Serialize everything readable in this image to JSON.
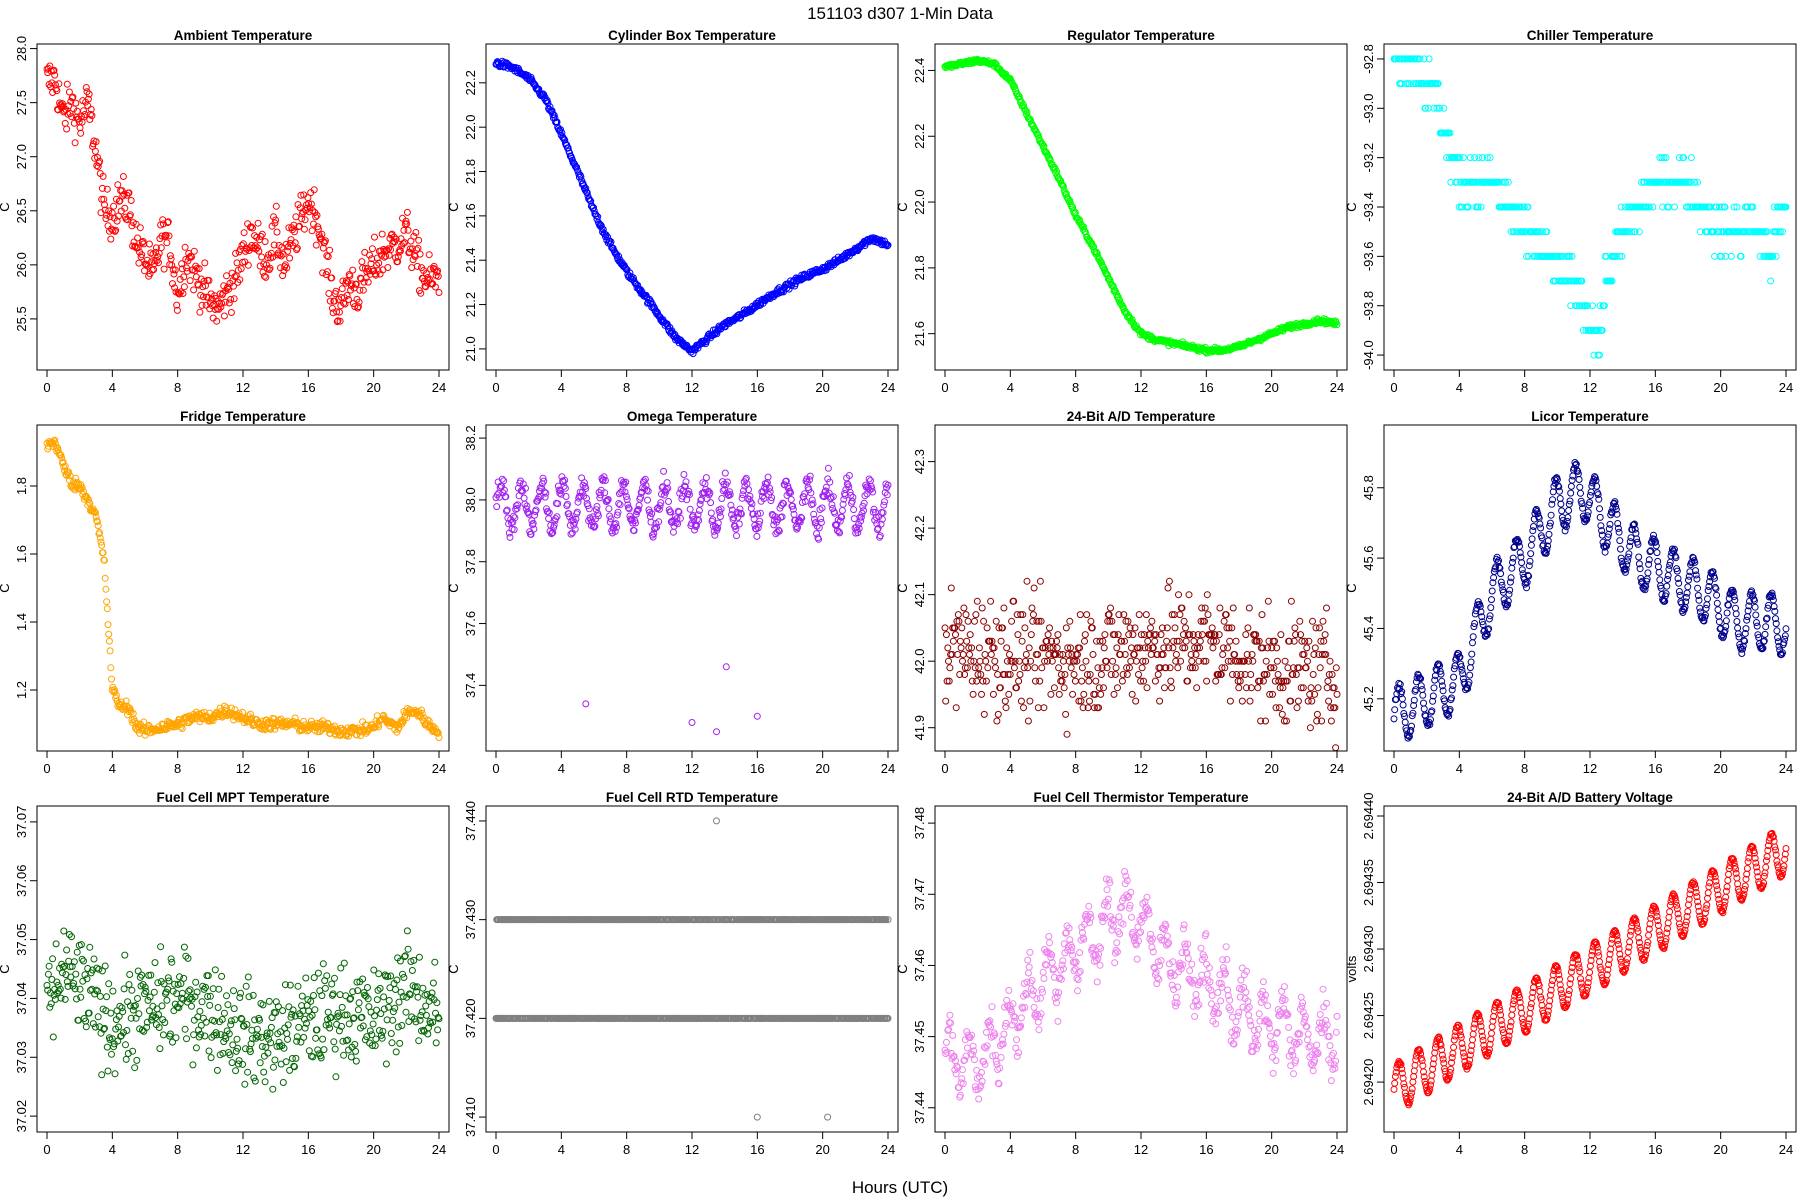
{
  "figure": {
    "title": "151103   d307   1-Min Data",
    "xlabel": "Hours (UTC)"
  },
  "chart_data": [
    {
      "type": "scatter",
      "title": "Ambient Temperature",
      "ylabel": "C",
      "color": "#ff0000",
      "xlim": [
        0,
        24
      ],
      "ylim": [
        25.12,
        27.95
      ],
      "xticks": [
        0,
        4,
        8,
        12,
        16,
        20,
        24
      ],
      "yticks": [
        25.5,
        26.0,
        26.5,
        27.0,
        27.5,
        28.0
      ],
      "ytick_labels": [
        "25.5",
        "26.0",
        "26.5",
        "27.0",
        "27.5",
        "28.0"
      ],
      "x": [
        0,
        0.5,
        1,
        1.5,
        2,
        2.5,
        3,
        3.5,
        4,
        4.5,
        5,
        5.5,
        6,
        6.5,
        7,
        7.5,
        8,
        8.5,
        9,
        9.5,
        10,
        10.5,
        11,
        11.5,
        12,
        12.5,
        13,
        13.5,
        14,
        14.5,
        15,
        15.5,
        16,
        16.5,
        17,
        17.5,
        18,
        18.5,
        19,
        19.5,
        20,
        20.5,
        21,
        21.5,
        22,
        22.5,
        23,
        23.5,
        24
      ],
      "y": [
        27.7,
        27.72,
        27.35,
        27.5,
        27.3,
        27.5,
        27.05,
        26.5,
        26.45,
        26.6,
        26.55,
        26.2,
        26.05,
        25.9,
        26.25,
        26.2,
        25.7,
        26.1,
        25.95,
        25.8,
        25.65,
        25.6,
        25.75,
        25.85,
        26.1,
        26.3,
        26.15,
        26.05,
        26.3,
        26.0,
        26.2,
        26.4,
        26.6,
        26.45,
        26.1,
        25.7,
        25.6,
        25.85,
        25.75,
        25.9,
        26.0,
        26.1,
        26.15,
        26.2,
        26.3,
        26.1,
        25.9,
        25.85,
        25.9
      ],
      "noise": 0.18
    },
    {
      "type": "scatter",
      "title": "Cylinder Box Temperature",
      "ylabel": "C",
      "color": "#0000ff",
      "xlim": [
        0,
        24
      ],
      "ylim": [
        20.95,
        22.33
      ],
      "xticks": [
        0,
        4,
        8,
        12,
        16,
        20,
        24
      ],
      "yticks": [
        21.0,
        21.2,
        21.4,
        21.6,
        21.8,
        22.0,
        22.2
      ],
      "ytick_labels": [
        "21.0",
        "21.2",
        "21.4",
        "21.6",
        "21.8",
        "22.0",
        "22.2"
      ],
      "x": [
        0,
        1,
        2,
        3,
        4,
        5,
        6,
        7,
        8,
        9,
        10,
        11,
        12,
        13,
        14,
        15,
        16,
        17,
        18,
        19,
        20,
        21,
        22,
        23,
        24
      ],
      "y": [
        22.29,
        22.27,
        22.22,
        22.13,
        21.97,
        21.8,
        21.62,
        21.47,
        21.35,
        21.25,
        21.15,
        21.05,
        20.99,
        21.05,
        21.11,
        21.15,
        21.2,
        21.25,
        21.29,
        21.33,
        21.36,
        21.4,
        21.45,
        21.5,
        21.47
      ],
      "noise": 0.012
    },
    {
      "type": "scatter",
      "title": "Regulator Temperature",
      "ylabel": "C",
      "color": "#00ff00",
      "xlim": [
        0,
        24
      ],
      "ylim": [
        21.52,
        22.45
      ],
      "xticks": [
        0,
        4,
        8,
        12,
        16,
        20,
        24
      ],
      "yticks": [
        21.6,
        21.8,
        22.0,
        22.2,
        22.4
      ],
      "ytick_labels": [
        "21.6",
        "21.8",
        "22.0",
        "22.2",
        "22.4"
      ],
      "x": [
        0,
        1,
        2,
        3,
        4,
        5,
        6,
        7,
        8,
        9,
        10,
        11,
        12,
        13,
        14,
        15,
        16,
        17,
        18,
        19,
        20,
        21,
        22,
        23,
        24
      ],
      "y": [
        22.41,
        22.42,
        22.43,
        22.42,
        22.37,
        22.27,
        22.17,
        22.07,
        21.96,
        21.87,
        21.77,
        21.67,
        21.6,
        21.58,
        21.57,
        21.56,
        21.55,
        21.55,
        21.56,
        21.58,
        21.6,
        21.62,
        21.63,
        21.64,
        21.63
      ],
      "noise": 0.006
    },
    {
      "type": "scatter",
      "title": "Chiller Temperature",
      "ylabel": "C",
      "color": "#00ffff",
      "xlim": [
        0,
        24
      ],
      "ylim": [
        -94.02,
        -92.78
      ],
      "xticks": [
        0,
        4,
        8,
        12,
        16,
        20,
        24
      ],
      "yticks": [
        -94.0,
        -93.8,
        -93.6,
        -93.4,
        -93.2,
        -93.0,
        -92.8
      ],
      "ytick_labels": [
        "-94.0",
        "-93.8",
        "-93.6",
        "-93.4",
        "-93.2",
        "-93.0",
        "-92.8"
      ],
      "x": [
        0,
        1,
        2,
        2.5,
        3,
        3.5,
        4,
        5,
        6,
        7,
        8,
        9,
        10,
        11,
        12,
        12.5,
        13,
        14,
        15,
        16,
        17,
        18,
        19,
        20,
        21,
        22,
        23,
        24
      ],
      "y": [
        -92.8,
        -92.8,
        -92.9,
        -92.95,
        -93.05,
        -93.2,
        -93.3,
        -93.3,
        -93.3,
        -93.4,
        -93.5,
        -93.55,
        -93.65,
        -93.7,
        -93.85,
        -93.95,
        -93.7,
        -93.5,
        -93.4,
        -93.3,
        -93.3,
        -93.3,
        -93.4,
        -93.5,
        -93.5,
        -93.45,
        -93.6,
        -93.4
      ],
      "noise": 0.08,
      "step": 0.1
    },
    {
      "type": "scatter",
      "title": "Fridge Temperature",
      "ylabel": "C",
      "color": "#ffa500",
      "xlim": [
        0,
        24
      ],
      "ylim": [
        1.05,
        1.95
      ],
      "xticks": [
        0,
        4,
        8,
        12,
        16,
        20,
        24
      ],
      "yticks": [
        1.2,
        1.4,
        1.6,
        1.8
      ],
      "ytick_labels": [
        "1.2",
        "1.4",
        "1.6",
        "1.8"
      ],
      "x": [
        0,
        0.5,
        1,
        1.5,
        2,
        2.5,
        3,
        3.5,
        4,
        4.5,
        5,
        5.5,
        6,
        7,
        8,
        9,
        10,
        11,
        12,
        13,
        14,
        15,
        16,
        17,
        18,
        19,
        20,
        20.5,
        21,
        21.5,
        22,
        22.5,
        23,
        23.5,
        24
      ],
      "y": [
        1.92,
        1.93,
        1.86,
        1.81,
        1.8,
        1.76,
        1.71,
        1.58,
        1.2,
        1.15,
        1.15,
        1.09,
        1.08,
        1.09,
        1.1,
        1.12,
        1.12,
        1.14,
        1.12,
        1.1,
        1.1,
        1.1,
        1.09,
        1.09,
        1.08,
        1.08,
        1.09,
        1.12,
        1.1,
        1.09,
        1.13,
        1.14,
        1.12,
        1.09,
        1.08
      ],
      "noise": 0.015
    },
    {
      "type": "scatter",
      "title": "Omega Temperature",
      "ylabel": "C",
      "color": "#a020f0",
      "xlim": [
        0,
        24
      ],
      "ylim": [
        37.22,
        38.21
      ],
      "xticks": [
        0,
        4,
        8,
        12,
        16,
        20,
        24
      ],
      "yticks": [
        37.4,
        37.6,
        37.8,
        38.0,
        38.2
      ],
      "ytick_labels": [
        "37.4",
        "37.6",
        "37.8",
        "38.0",
        "38.2"
      ],
      "x": [
        0,
        24
      ],
      "y": [
        37.98,
        37.98
      ],
      "wave_amp": 0.07,
      "wave_period": 1.25,
      "noise": 0.03,
      "outliers_x": [
        5.5,
        12,
        13.5,
        14.1,
        16
      ],
      "outliers_y": [
        37.34,
        37.28,
        37.25,
        37.46,
        37.3
      ]
    },
    {
      "type": "scatter",
      "title": "24-Bit A/D Temperature",
      "ylabel": "C",
      "color": "#8b0000",
      "xlim": [
        0,
        24
      ],
      "ylim": [
        41.88,
        42.34
      ],
      "xticks": [
        0,
        4,
        8,
        12,
        16,
        20,
        24
      ],
      "yticks": [
        41.9,
        42.0,
        42.1,
        42.2,
        42.3
      ],
      "ytick_labels": [
        "41.9",
        "42.0",
        "42.1",
        "42.2",
        "42.3"
      ],
      "x": [
        0,
        4,
        8,
        12,
        16,
        20,
        24
      ],
      "y": [
        42.02,
        42.01,
        42.0,
        42.02,
        42.03,
        41.99,
        41.98
      ],
      "noise": 0.07,
      "step": 0.01
    },
    {
      "type": "scatter",
      "title": "Licor Temperature",
      "ylabel": "C",
      "color": "#00008b",
      "xlim": [
        0,
        24
      ],
      "ylim": [
        45.08,
        45.95
      ],
      "xticks": [
        0,
        4,
        8,
        12,
        16,
        20,
        24
      ],
      "yticks": [
        45.2,
        45.4,
        45.6,
        45.8
      ],
      "ytick_labels": [
        "45.2",
        "45.4",
        "45.6",
        "45.8"
      ],
      "x": [
        0,
        2,
        4,
        6,
        8,
        10,
        11.5,
        13,
        15,
        17,
        19,
        21,
        23,
        24
      ],
      "y": [
        45.15,
        45.2,
        45.25,
        45.5,
        45.6,
        45.75,
        45.8,
        45.7,
        45.6,
        45.55,
        45.5,
        45.42,
        45.42,
        45.4
      ],
      "wave_amp": 0.08,
      "wave_period": 1.2,
      "noise": 0.008
    },
    {
      "type": "scatter",
      "title": "Fuel Cell MPT Temperature",
      "ylabel": "C",
      "color": "#006400",
      "xlim": [
        0,
        24
      ],
      "ylim": [
        37.019,
        37.071
      ],
      "xticks": [
        0,
        4,
        8,
        12,
        16,
        20,
        24
      ],
      "yticks": [
        37.02,
        37.03,
        37.04,
        37.05,
        37.06,
        37.07
      ],
      "ytick_labels": [
        "37.02",
        "37.03",
        "37.04",
        "37.05",
        "37.06",
        "37.07"
      ],
      "x": [
        0,
        1,
        2,
        4,
        6,
        8,
        10,
        12,
        14,
        16,
        18,
        20,
        22,
        24
      ],
      "y": [
        37.038,
        37.045,
        37.042,
        37.036,
        37.038,
        37.04,
        37.038,
        37.034,
        37.033,
        37.036,
        37.038,
        37.036,
        37.042,
        37.037
      ],
      "noise": 0.007
    },
    {
      "type": "scatter",
      "title": "Fuel Cell RTD Temperature",
      "ylabel": "C",
      "color": "#808080",
      "xlim": [
        0,
        24
      ],
      "ylim": [
        37.4095,
        37.4405
      ],
      "xticks": [
        0,
        4,
        8,
        12,
        16,
        20,
        24
      ],
      "yticks": [
        37.41,
        37.42,
        37.43,
        37.44
      ],
      "ytick_labels": [
        "37.410",
        "37.420",
        "37.430",
        "37.440"
      ],
      "levels": [
        37.42,
        37.43
      ],
      "outliers_x": [
        13.5,
        16,
        20.3
      ],
      "outliers_y": [
        37.44,
        37.41,
        37.41
      ]
    },
    {
      "type": "scatter",
      "title": "Fuel Cell Thermistor Temperature",
      "ylabel": "C",
      "color": "#ee82ee",
      "xlim": [
        0,
        24
      ],
      "ylim": [
        37.438,
        37.481
      ],
      "xticks": [
        0,
        4,
        8,
        12,
        16,
        20,
        24
      ],
      "yticks": [
        37.44,
        37.45,
        37.46,
        37.47,
        37.48
      ],
      "ytick_labels": [
        "37.44",
        "37.45",
        "37.46",
        "37.47",
        "37.48"
      ],
      "x": [
        0,
        2,
        4,
        6,
        8,
        10,
        11.5,
        13,
        15,
        17,
        19,
        21,
        23,
        24
      ],
      "y": [
        37.447,
        37.446,
        37.452,
        37.458,
        37.462,
        37.466,
        37.468,
        37.462,
        37.459,
        37.456,
        37.452,
        37.451,
        37.449,
        37.451
      ],
      "wave_amp": 0.004,
      "wave_period": 1.2,
      "noise": 0.0025
    },
    {
      "type": "scatter",
      "title": "24-Bit A/D Battery Voltage",
      "ylabel": "volts",
      "color": "#ff0000",
      "xlim": [
        0,
        24
      ],
      "ylim": [
        2.69417,
        2.6944
      ],
      "xticks": [
        0,
        4,
        8,
        12,
        16,
        20,
        24
      ],
      "yticks": [
        2.6942,
        2.69425,
        2.6943,
        2.69435,
        2.6944
      ],
      "ytick_labels": [
        "2.69420",
        "2.69425",
        "2.69430",
        "2.69435",
        "2.69440"
      ],
      "x": [
        0,
        24
      ],
      "y": [
        2.694195,
        2.694375
      ],
      "wave_amp": 1.8e-05,
      "wave_period": 1.2,
      "noise": 8e-07
    }
  ]
}
